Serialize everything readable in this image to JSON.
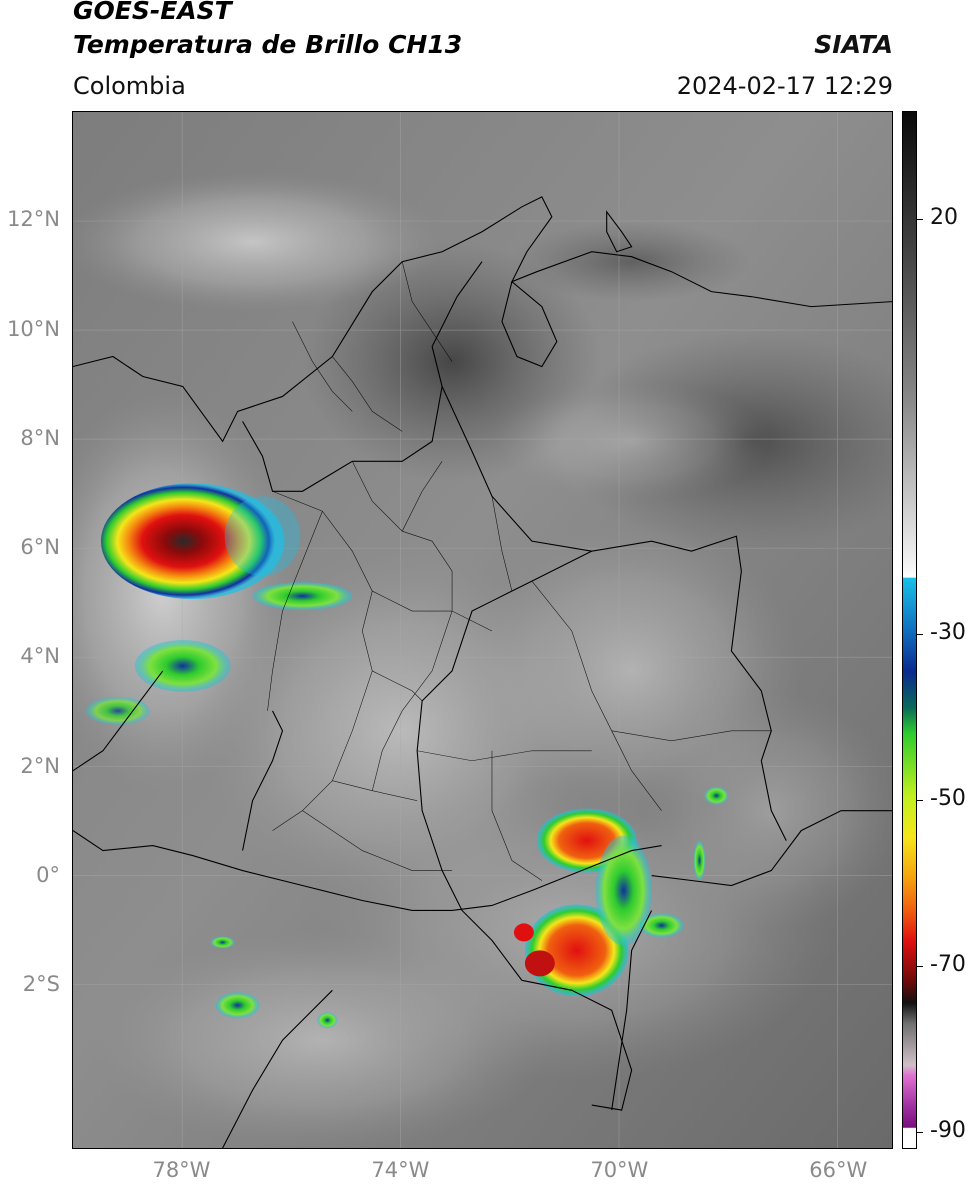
{
  "header": {
    "line1": "GOES-EAST",
    "line2": "Temperatura de Brillo CH13",
    "brand": "SIATA",
    "region": "Colombia",
    "timestamp": "2024-02-17 12:29"
  },
  "map": {
    "lat_range": [
      -5,
      14
    ],
    "lon_range": [
      -80,
      -65
    ],
    "lat_labels": [
      {
        "value": 12,
        "text": "12°N"
      },
      {
        "value": 10,
        "text": "10°N"
      },
      {
        "value": 8,
        "text": "8°N"
      },
      {
        "value": 6,
        "text": "6°N"
      },
      {
        "value": 4,
        "text": "4°N"
      },
      {
        "value": 2,
        "text": "2°N"
      },
      {
        "value": 0,
        "text": "0°"
      },
      {
        "value": -2,
        "text": "2°S"
      }
    ],
    "lon_labels": [
      {
        "value": -78,
        "text": "78°W"
      },
      {
        "value": -74,
        "text": "74°W"
      },
      {
        "value": -70,
        "text": "70°W"
      },
      {
        "value": -66,
        "text": "66°W"
      }
    ],
    "convective_cells": [
      {
        "lat": 6.3,
        "lon": -78.0,
        "min_temp": -70
      },
      {
        "lat": 0.6,
        "lon": -70.8,
        "min_temp": -60
      },
      {
        "lat": -1.3,
        "lon": -70.9,
        "min_temp": -65
      },
      {
        "lat": 3.8,
        "lon": -77.6,
        "min_temp": -40
      },
      {
        "lat": 5.0,
        "lon": -75.9,
        "min_temp": -40
      }
    ]
  },
  "colorbar": {
    "range": [
      -92,
      33
    ],
    "ticks": [
      {
        "value": 20,
        "text": "20"
      },
      {
        "value": -30,
        "text": "-30"
      },
      {
        "value": -50,
        "text": "-50"
      },
      {
        "value": -70,
        "text": "-70"
      },
      {
        "value": -90,
        "text": "-90"
      }
    ],
    "colors": {
      "warm_top": "#111111",
      "warm_mid": "#7a7a7a",
      "cool": "#f2f2f2",
      "cyan": "#19c0e8",
      "blue": "#1030a0",
      "green": "#2ecc2e",
      "yellow": "#f5e61a",
      "orange": "#f58a10",
      "red": "#e01010",
      "darkred": "#6a0a0a",
      "magenta": "#d060c8",
      "purple": "#7a1080"
    }
  }
}
